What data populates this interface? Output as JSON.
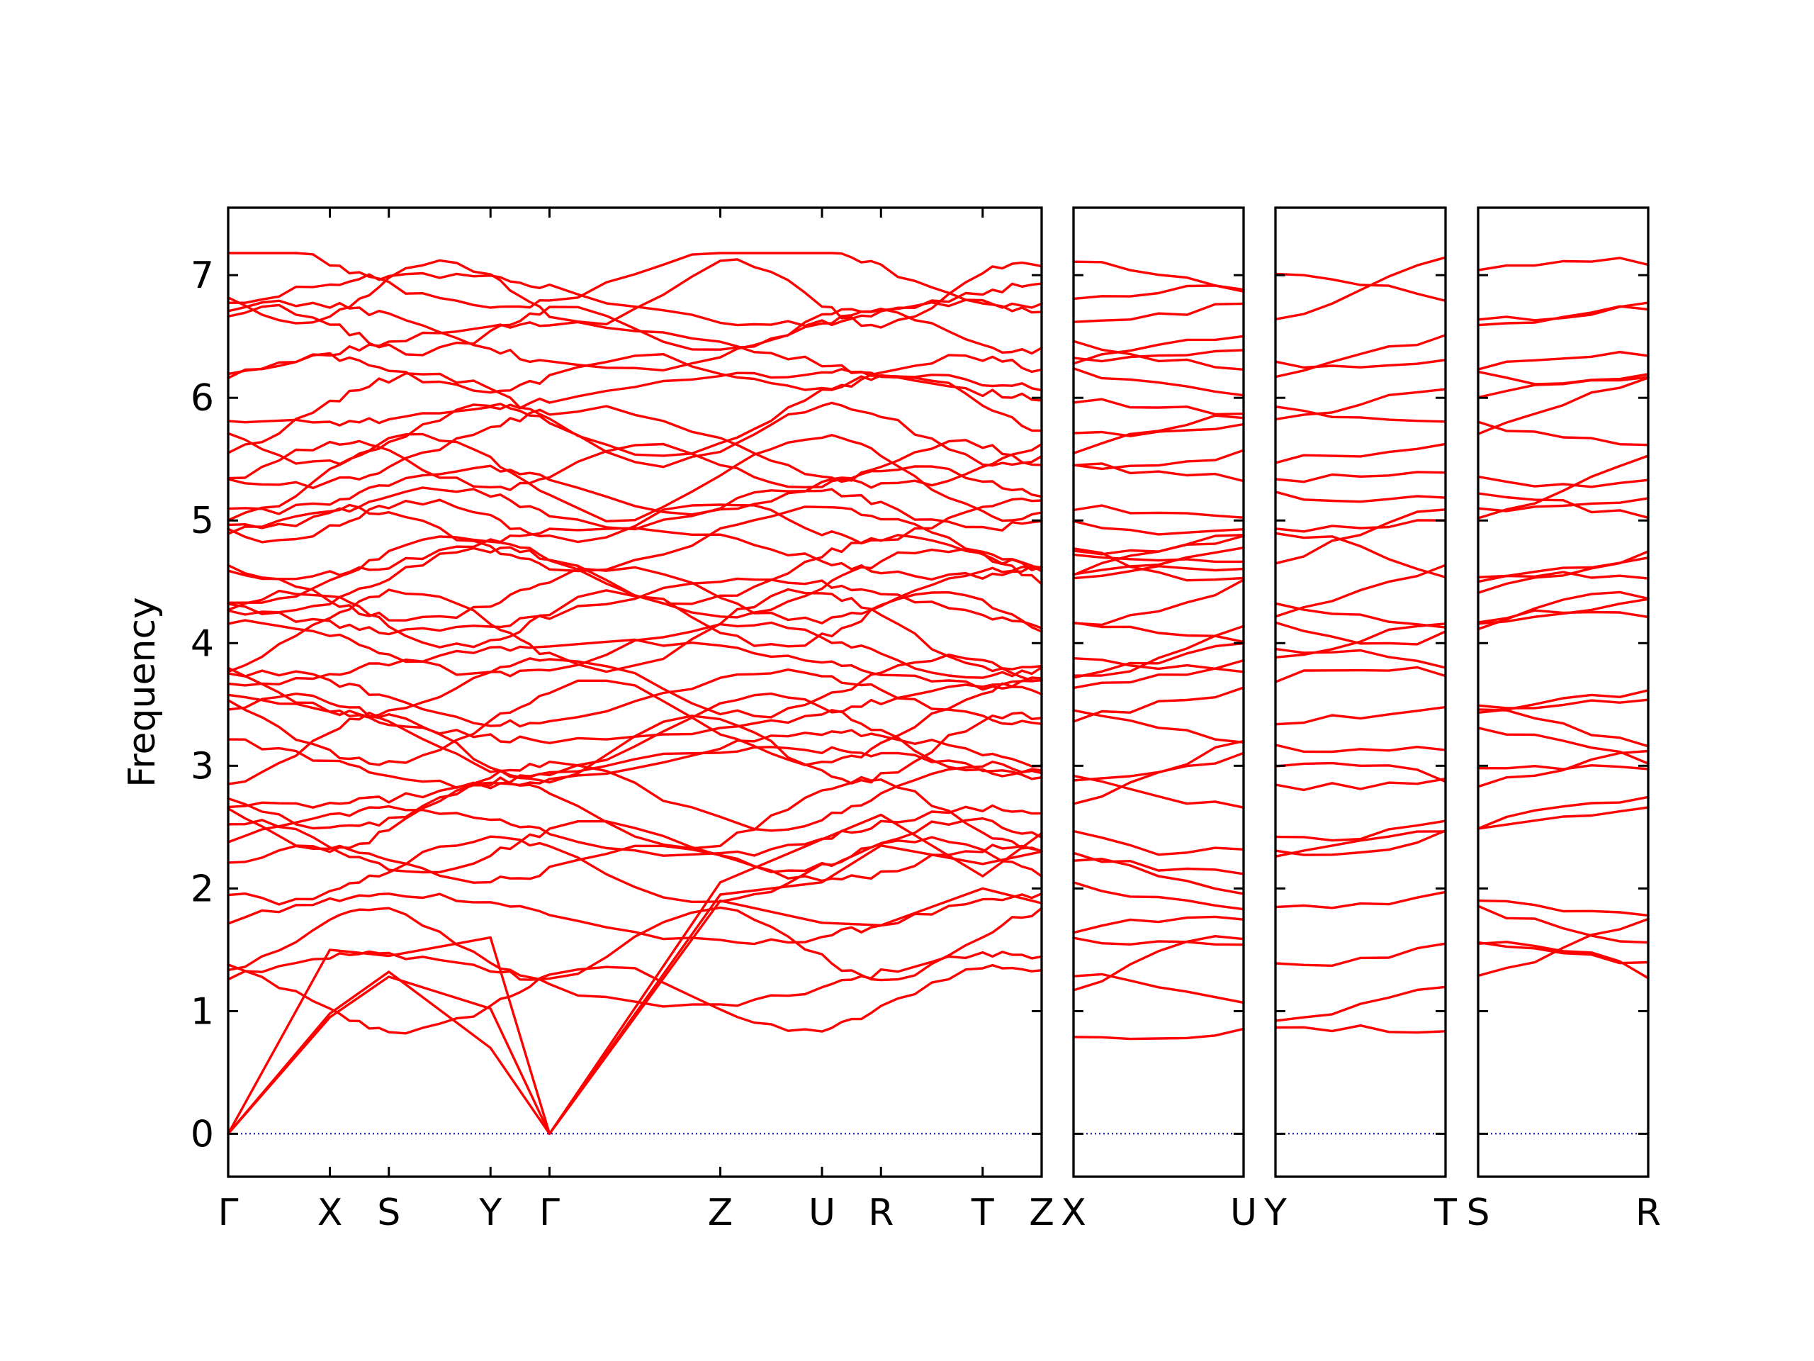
{
  "chart_data": {
    "type": "line",
    "title": "",
    "xlabel": "",
    "ylabel": "Frequency",
    "ylim": [
      -0.35,
      7.55
    ],
    "y_ticks": [
      0,
      1,
      2,
      3,
      4,
      5,
      6,
      7
    ],
    "grid": false,
    "colors": {
      "bands": "#ff0000",
      "zero_line": "#0000aa",
      "frame": "#000000"
    },
    "panels": [
      {
        "name": "panel-1",
        "x_labels": [
          "Γ",
          "X",
          "S",
          "Y",
          "Γ",
          "Z",
          "U",
          "R",
          "T",
          "Z"
        ],
        "x_positions": [
          0,
          1,
          1.58,
          2.58,
          3.16,
          4.84,
          5.84,
          6.42,
          7.42,
          8.0
        ],
        "band_groups": [
          {
            "kind": "acoustic",
            "points": [
              [
                0,
                0.0
              ],
              [
                1,
                0.95
              ],
              [
                1.58,
                1.28
              ],
              [
                2.58,
                1.02
              ],
              [
                3.16,
                0.0
              ],
              [
                4.84,
                1.9
              ],
              [
                5.84,
                1.72
              ],
              [
                6.42,
                1.7
              ],
              [
                7.42,
                2.0
              ],
              [
                8.0,
                1.88
              ]
            ]
          },
          {
            "kind": "acoustic",
            "points": [
              [
                0,
                0.0
              ],
              [
                1,
                0.98
              ],
              [
                1.58,
                1.32
              ],
              [
                2.58,
                0.7
              ],
              [
                3.16,
                0.0
              ],
              [
                4.84,
                1.95
              ],
              [
                5.84,
                2.05
              ],
              [
                6.42,
                2.35
              ],
              [
                7.42,
                2.2
              ],
              [
                8.0,
                2.3
              ]
            ]
          },
          {
            "kind": "acoustic",
            "points": [
              [
                0,
                0.0
              ],
              [
                1,
                1.5
              ],
              [
                1.58,
                1.45
              ],
              [
                2.58,
                1.6
              ],
              [
                3.16,
                0.0
              ],
              [
                4.84,
                2.05
              ],
              [
                5.84,
                2.4
              ],
              [
                6.42,
                2.6
              ],
              [
                7.42,
                2.1
              ],
              [
                8.0,
                2.45
              ]
            ]
          }
        ],
        "optical_bands": [
          1.1,
          1.25,
          1.55,
          1.75,
          2.15,
          2.2,
          2.35,
          2.45,
          2.6,
          2.75,
          2.9,
          3.05,
          3.15,
          3.25,
          3.35,
          3.45,
          3.55,
          3.65,
          3.8,
          3.95,
          4.1,
          4.2,
          4.3,
          4.4,
          4.5,
          4.6,
          4.75,
          4.85,
          5.0,
          5.1,
          5.25,
          5.35,
          5.45,
          5.6,
          5.7,
          5.85,
          6.0,
          6.2,
          6.3,
          6.5,
          6.55,
          6.8,
          6.85,
          7.0
        ]
      },
      {
        "name": "panel-2",
        "x_labels": [
          "X",
          "U"
        ],
        "x_positions": [
          0,
          1
        ],
        "optical_bands": [
          0.98,
          1.1,
          1.3,
          1.5,
          1.7,
          2.05,
          2.1,
          2.3,
          2.6,
          2.9,
          3.0,
          3.1,
          3.3,
          3.5,
          3.6,
          3.7,
          3.9,
          4.0,
          4.15,
          4.3,
          4.45,
          4.6,
          4.7,
          4.8,
          4.9,
          5.0,
          5.15,
          5.3,
          5.4,
          5.55,
          5.7,
          5.85,
          6.0,
          6.15,
          6.3,
          6.4,
          6.55,
          6.7,
          6.8,
          6.9
        ]
      },
      {
        "name": "panel-3",
        "x_labels": [
          "Y",
          "T"
        ],
        "x_positions": [
          0,
          1
        ],
        "optical_bands": [
          0.68,
          1.02,
          1.58,
          2.05,
          2.25,
          2.45,
          2.65,
          2.85,
          3.0,
          3.25,
          3.45,
          3.65,
          3.8,
          4.05,
          4.25,
          4.35,
          4.45,
          4.6,
          4.85,
          5.05,
          5.3,
          5.5,
          5.7,
          5.8,
          6.0,
          6.25,
          6.5,
          6.75,
          6.9
        ]
      },
      {
        "name": "panel-4",
        "x_labels": [
          "S",
          "R"
        ],
        "x_positions": [
          0,
          1
        ],
        "optical_bands": [
          1.3,
          1.45,
          1.6,
          1.75,
          1.85,
          2.5,
          2.7,
          2.85,
          3.0,
          3.1,
          3.25,
          3.55,
          3.75,
          3.95,
          4.15,
          4.3,
          4.45,
          4.55,
          4.75,
          4.95,
          5.1,
          5.3,
          5.45,
          5.65,
          5.85,
          6.0,
          6.2,
          6.45,
          6.65,
          6.8,
          6.95
        ]
      }
    ]
  }
}
